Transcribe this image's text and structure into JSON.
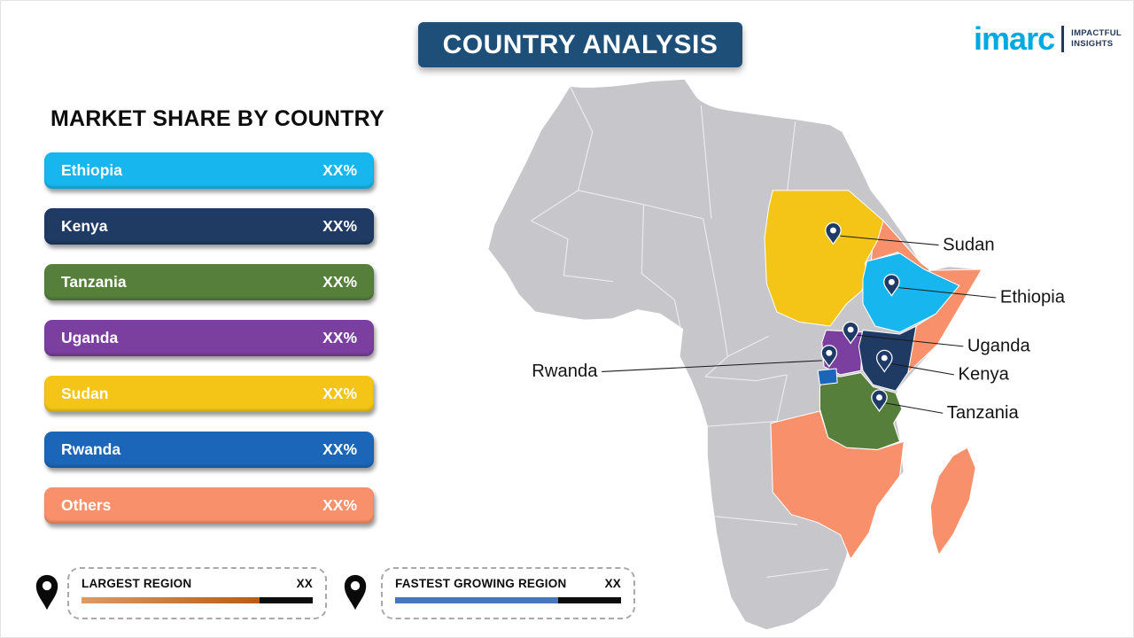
{
  "header": {
    "title": "COUNTRY ANALYSIS"
  },
  "logo": {
    "brand": "imarc",
    "tagline1": "IMPACTFUL",
    "tagline2": "INSIGHTS"
  },
  "colors": {
    "ethiopia": "#18b6ee",
    "kenya": "#1f3a63",
    "tanzania": "#567f3c",
    "uganda": "#7b3fa0",
    "sudan": "#f4c516",
    "rwanda": "#1b66b8",
    "others": "#f9906c",
    "map_base": "#c7c7cb",
    "pin": "#1e3a66",
    "title_bg": "#1d4f78",
    "largest_bar": "#b95c12",
    "fastest_bar": "#4a74c0",
    "meter_tail": "#0c0c0c"
  },
  "market_share": {
    "heading": "MARKET SHARE BY COUNTRY",
    "items": [
      {
        "label": "Ethiopia",
        "value": "XX%",
        "color": "#18b6ee"
      },
      {
        "label": "Kenya",
        "value": "XX%",
        "color": "#1f3a63"
      },
      {
        "label": "Tanzania",
        "value": "XX%",
        "color": "#567f3c"
      },
      {
        "label": "Uganda",
        "value": "XX%",
        "color": "#7b3fa0"
      },
      {
        "label": "Sudan",
        "value": "XX%",
        "color": "#f4c516"
      },
      {
        "label": "Rwanda",
        "value": "XX%",
        "color": "#1b66b8"
      },
      {
        "label": "Others",
        "value": "XX%",
        "color": "#f9906c"
      }
    ]
  },
  "map": {
    "labels": {
      "sudan": "Sudan",
      "ethiopia": "Ethiopia",
      "uganda": "Uganda",
      "kenya": "Kenya",
      "rwanda": "Rwanda",
      "tanzania": "Tanzania"
    }
  },
  "footer_legend": {
    "largest": {
      "label": "LARGEST REGION",
      "value": "XX"
    },
    "fastest": {
      "label": "FASTEST GROWING REGION",
      "value": "XX"
    }
  },
  "chart_data": {
    "type": "bar",
    "title": "MARKET SHARE BY COUNTRY",
    "categories": [
      "Ethiopia",
      "Kenya",
      "Tanzania",
      "Uganda",
      "Sudan",
      "Rwanda",
      "Others"
    ],
    "values": [
      "XX%",
      "XX%",
      "XX%",
      "XX%",
      "XX%",
      "XX%",
      "XX%"
    ],
    "colors": [
      "#18b6ee",
      "#1f3a63",
      "#567f3c",
      "#7b3fa0",
      "#f4c516",
      "#1b66b8",
      "#f9906c"
    ],
    "legend_position": "left",
    "map_highlighted_countries": [
      "Sudan",
      "Ethiopia",
      "Uganda",
      "Kenya",
      "Rwanda",
      "Tanzania"
    ]
  }
}
